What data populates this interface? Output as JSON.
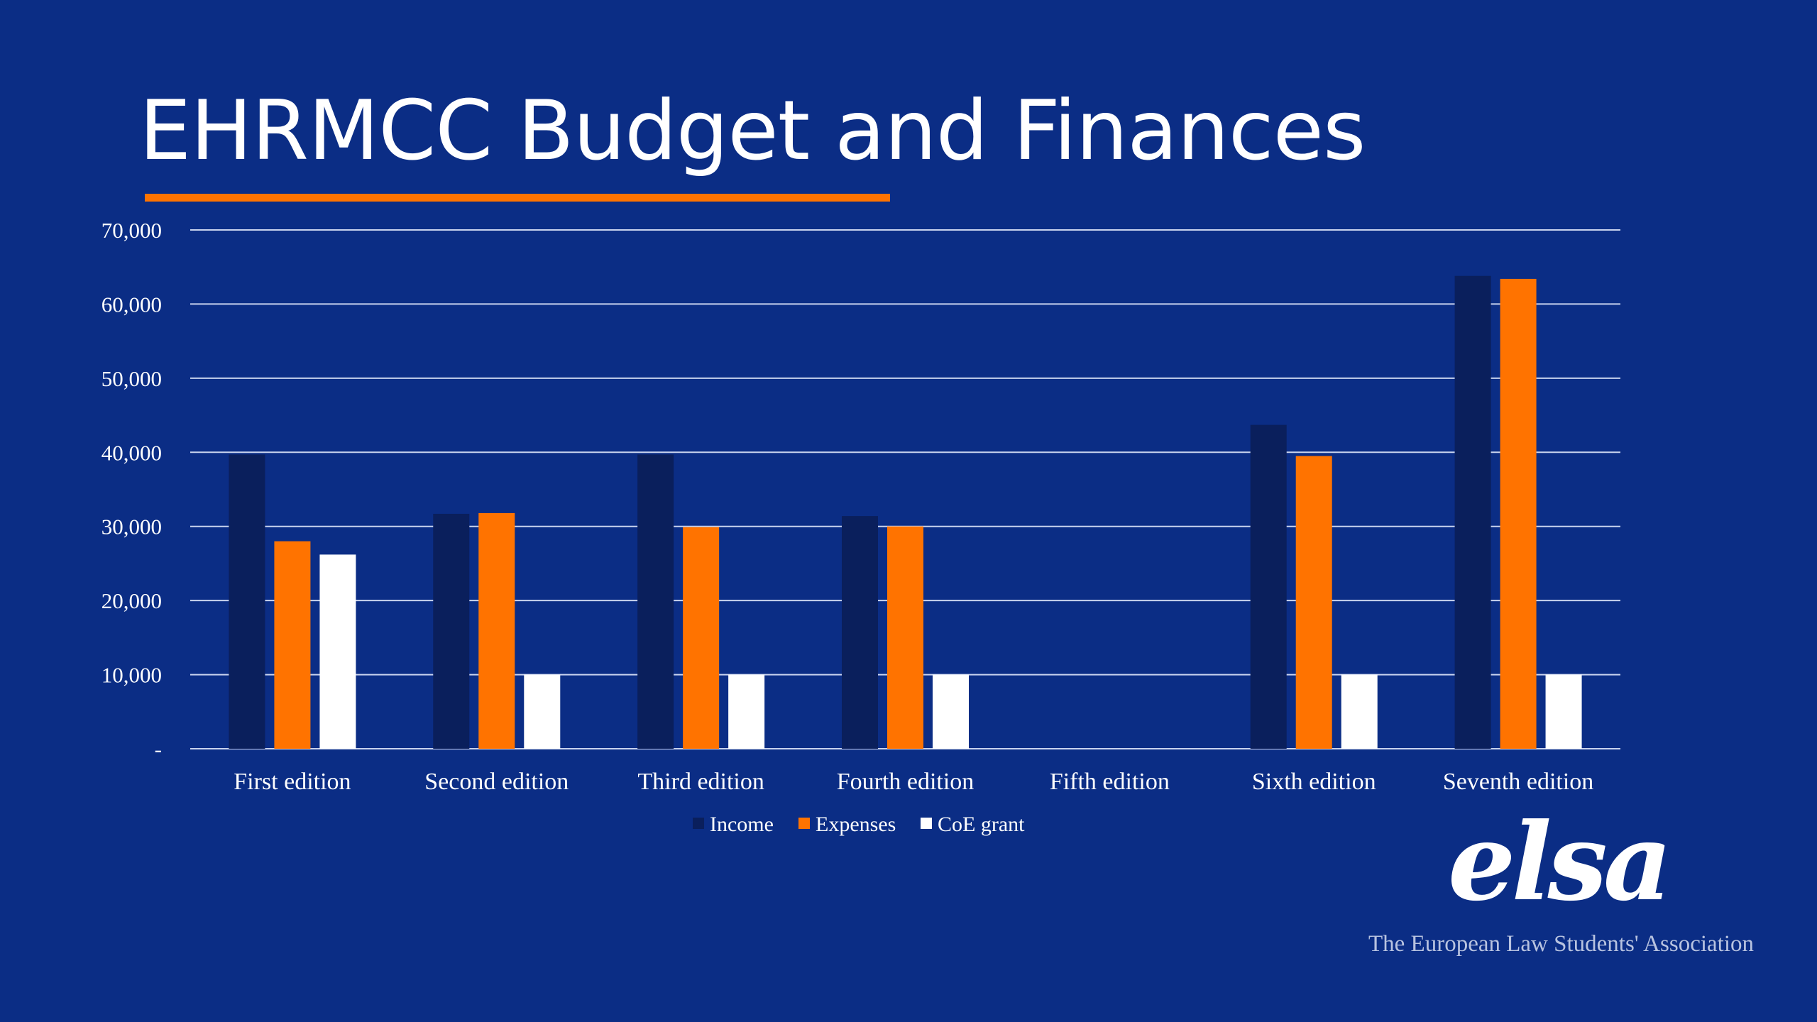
{
  "slide": {
    "title": "EHRMCC Budget and Finances",
    "logo_text": "elsa",
    "tagline": "The European Law Students' Association"
  },
  "colors": {
    "background": "#0b2d85",
    "title_underline": "#ff7300",
    "income": "#0a1f5c",
    "expenses": "#ff7300",
    "coe_grant": "#ffffff",
    "gridline": "#c9d3ee",
    "text": "#ffffff"
  },
  "chart_data": {
    "type": "bar",
    "categories": [
      "First edition",
      "Second edition",
      "Third edition",
      "Fourth edition",
      "Fifth edition",
      "Sixth edition",
      "Seventh edition"
    ],
    "series": [
      {
        "name": "Income",
        "values": [
          39700,
          31700,
          39700,
          31400,
          null,
          43700,
          63800
        ]
      },
      {
        "name": "Expenses",
        "values": [
          28000,
          31800,
          29900,
          30000,
          null,
          39500,
          63400
        ]
      },
      {
        "name": "CoE grant",
        "values": [
          26200,
          10000,
          10000,
          10000,
          null,
          10000,
          10000
        ]
      }
    ],
    "y_ticks": [
      {
        "value": 70000,
        "label": "70,000"
      },
      {
        "value": 60000,
        "label": "60,000"
      },
      {
        "value": 50000,
        "label": "50,000"
      },
      {
        "value": 40000,
        "label": "40,000"
      },
      {
        "value": 30000,
        "label": "30,000"
      },
      {
        "value": 20000,
        "label": "20,000"
      },
      {
        "value": 10000,
        "label": "10,000"
      },
      {
        "value": 0,
        "label": "-"
      }
    ],
    "ylim": [
      0,
      70000
    ],
    "grid": true,
    "legend_position": "bottom"
  }
}
